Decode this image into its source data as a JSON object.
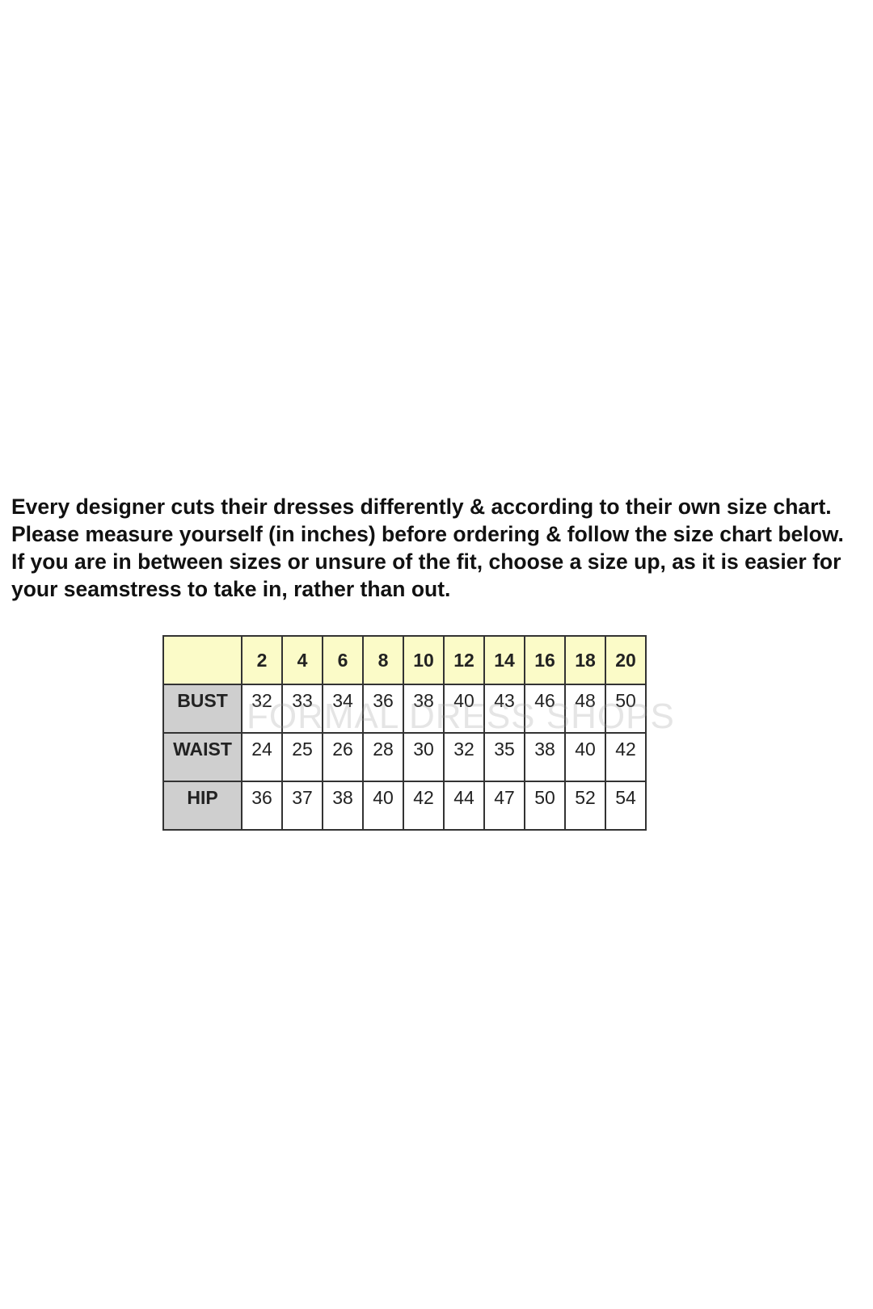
{
  "intro": {
    "paragraph1": "Every designer cuts their dresses differently & according to their own size chart. Please measure yourself (in inches) before ordering & follow the size chart below.",
    "paragraph2": "If you are in between sizes or unsure of the fit, choose a size up, as it is easier for your seamstress to take in, rather than out."
  },
  "size_table": {
    "sizes": [
      "2",
      "4",
      "6",
      "8",
      "10",
      "12",
      "14",
      "16",
      "18",
      "20"
    ],
    "rows": [
      {
        "label": "BUST",
        "values": [
          "32",
          "33",
          "34",
          "36",
          "38",
          "40",
          "43",
          "46",
          "48",
          "50"
        ]
      },
      {
        "label": "WAIST",
        "values": [
          "24",
          "25",
          "26",
          "28",
          "30",
          "32",
          "35",
          "38",
          "40",
          "42"
        ]
      },
      {
        "label": "HIP",
        "values": [
          "36",
          "37",
          "38",
          "40",
          "42",
          "44",
          "47",
          "50",
          "52",
          "54"
        ]
      }
    ],
    "watermark": "FORMAL DRESS SHOPS",
    "colors": {
      "header_bg": "#fbfbc8",
      "label_bg": "#cfcfcf"
    }
  }
}
